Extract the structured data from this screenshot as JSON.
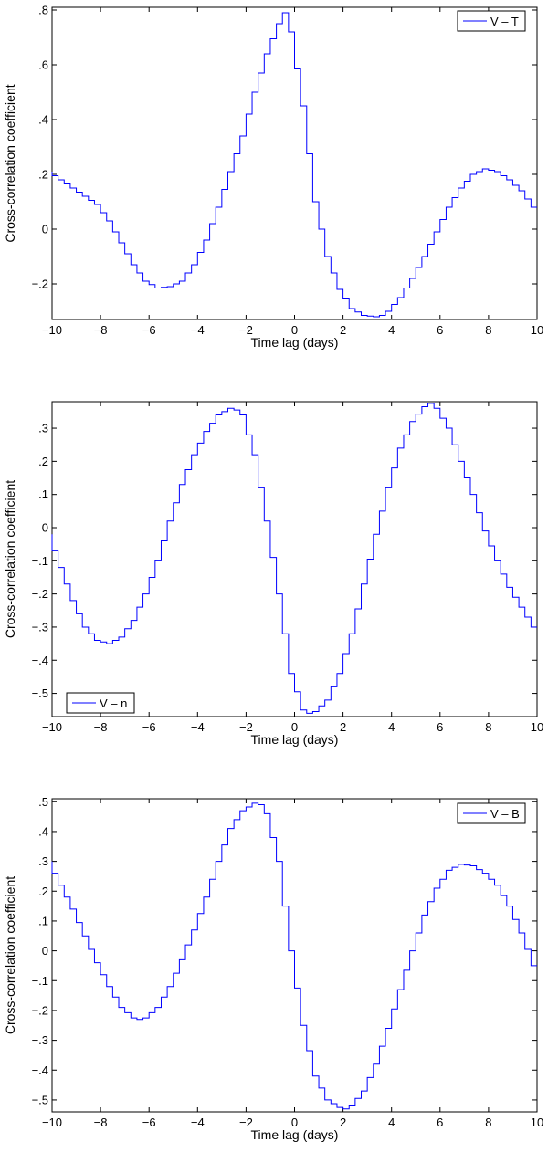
{
  "chart_data": [
    {
      "type": "line",
      "xlabel": "Time lag (days)",
      "ylabel": "Cross-correlation coefficient",
      "xlim": [
        -10,
        10
      ],
      "ylim": [
        -0.33,
        0.81
      ],
      "xticks": [
        -10,
        -8,
        -6,
        -4,
        -2,
        0,
        2,
        4,
        6,
        8,
        10
      ],
      "yticks": [
        -0.2,
        0,
        0.2,
        0.4,
        0.6,
        0.8
      ],
      "grid": false,
      "legend_position": "top-right",
      "series": [
        {
          "name": "V – T",
          "color": "#0000ff",
          "x": [
            -10,
            -9,
            -8,
            -7.5,
            -7,
            -6.5,
            -6,
            -5.5,
            -5,
            -4.5,
            -4,
            -3.5,
            -3,
            -2.5,
            -2,
            -1.5,
            -1,
            -0.5,
            -0.25,
            0,
            0.5,
            1,
            1.5,
            2,
            2.5,
            3,
            3.5,
            3.75,
            4,
            4.5,
            5,
            5.5,
            6,
            6.5,
            7,
            7.5,
            8,
            8.5,
            9,
            9.5,
            10
          ],
          "y": [
            0.21,
            0.15,
            0.09,
            0.03,
            -0.05,
            -0.13,
            -0.19,
            -0.215,
            -0.21,
            -0.19,
            -0.13,
            -0.04,
            0.08,
            0.21,
            0.34,
            0.5,
            0.64,
            0.75,
            0.79,
            0.72,
            0.45,
            0.1,
            -0.1,
            -0.22,
            -0.29,
            -0.315,
            -0.32,
            -0.315,
            -0.3,
            -0.25,
            -0.18,
            -0.1,
            -0.01,
            0.08,
            0.15,
            0.2,
            0.22,
            0.21,
            0.18,
            0.14,
            0.08
          ]
        }
      ]
    },
    {
      "type": "line",
      "xlabel": "Time lag (days)",
      "ylabel": "Cross-correlation coefficient",
      "xlim": [
        -10,
        10
      ],
      "ylim": [
        -0.57,
        0.38
      ],
      "xticks": [
        -10,
        -8,
        -6,
        -4,
        -2,
        0,
        2,
        4,
        6,
        8,
        10
      ],
      "yticks": [
        -0.5,
        -0.4,
        -0.3,
        -0.2,
        -0.1,
        0,
        0.1,
        0.2,
        0.3
      ],
      "grid": false,
      "legend_position": "bottom-left",
      "series": [
        {
          "name": "V – n",
          "color": "#0000ff",
          "x": [
            -10,
            -9.5,
            -9,
            -8.5,
            -8,
            -7.5,
            -7,
            -6.5,
            -6,
            -5.5,
            -5,
            -4.5,
            -4,
            -3.5,
            -3,
            -2.5,
            -2.25,
            -2,
            -1.5,
            -1,
            -0.5,
            0,
            0.5,
            0.75,
            1,
            1.5,
            2,
            2.5,
            3,
            3.5,
            4,
            4.5,
            5,
            5.5,
            5.75,
            6,
            6.5,
            7,
            7.5,
            8,
            8.5,
            9,
            9.5,
            10
          ],
          "y": [
            -0.02,
            -0.12,
            -0.22,
            -0.3,
            -0.34,
            -0.35,
            -0.33,
            -0.28,
            -0.2,
            -0.1,
            0.02,
            0.13,
            0.22,
            0.29,
            0.34,
            0.36,
            0.355,
            0.34,
            0.22,
            0.02,
            -0.2,
            -0.44,
            -0.55,
            -0.56,
            -0.555,
            -0.52,
            -0.44,
            -0.32,
            -0.17,
            -0.02,
            0.12,
            0.24,
            0.32,
            0.365,
            0.375,
            0.36,
            0.3,
            0.2,
            0.1,
            -0.01,
            -0.1,
            -0.18,
            -0.24,
            -0.3
          ]
        }
      ]
    },
    {
      "type": "line",
      "xlabel": "Time lag (days)",
      "ylabel": "Cross-correlation coefficient",
      "xlim": [
        -10,
        10
      ],
      "ylim": [
        -0.54,
        0.51
      ],
      "xticks": [
        -10,
        -8,
        -6,
        -4,
        -2,
        0,
        2,
        4,
        6,
        8,
        10
      ],
      "yticks": [
        -0.5,
        -0.4,
        -0.3,
        -0.2,
        -0.1,
        0,
        0.1,
        0.2,
        0.3,
        0.4,
        0.5
      ],
      "grid": false,
      "legend_position": "top-right",
      "series": [
        {
          "name": "V – B",
          "color": "#0000ff",
          "x": [
            -10,
            -9.5,
            -9,
            -8.5,
            -8,
            -7.5,
            -7,
            -6.5,
            -6.25,
            -6,
            -5.5,
            -5,
            -4.5,
            -4,
            -3.5,
            -3,
            -2.5,
            -2,
            -1.5,
            -1.25,
            -1,
            -0.5,
            0,
            0.5,
            1,
            1.5,
            2,
            2.25,
            2.5,
            3,
            3.5,
            4,
            4.5,
            5,
            5.5,
            6,
            6.5,
            7,
            7.5,
            8,
            8.5,
            9,
            9.5,
            10
          ],
          "y": [
            0.3,
            0.22,
            0.14,
            0.05,
            -0.04,
            -0.12,
            -0.19,
            -0.225,
            -0.23,
            -0.225,
            -0.19,
            -0.12,
            -0.03,
            0.07,
            0.18,
            0.3,
            0.41,
            0.47,
            0.495,
            0.49,
            0.46,
            0.3,
            0.0,
            -0.25,
            -0.42,
            -0.5,
            -0.525,
            -0.53,
            -0.52,
            -0.47,
            -0.38,
            -0.26,
            -0.13,
            0.0,
            0.12,
            0.21,
            0.27,
            0.29,
            0.285,
            0.26,
            0.22,
            0.15,
            0.06,
            -0.05
          ]
        }
      ]
    }
  ]
}
